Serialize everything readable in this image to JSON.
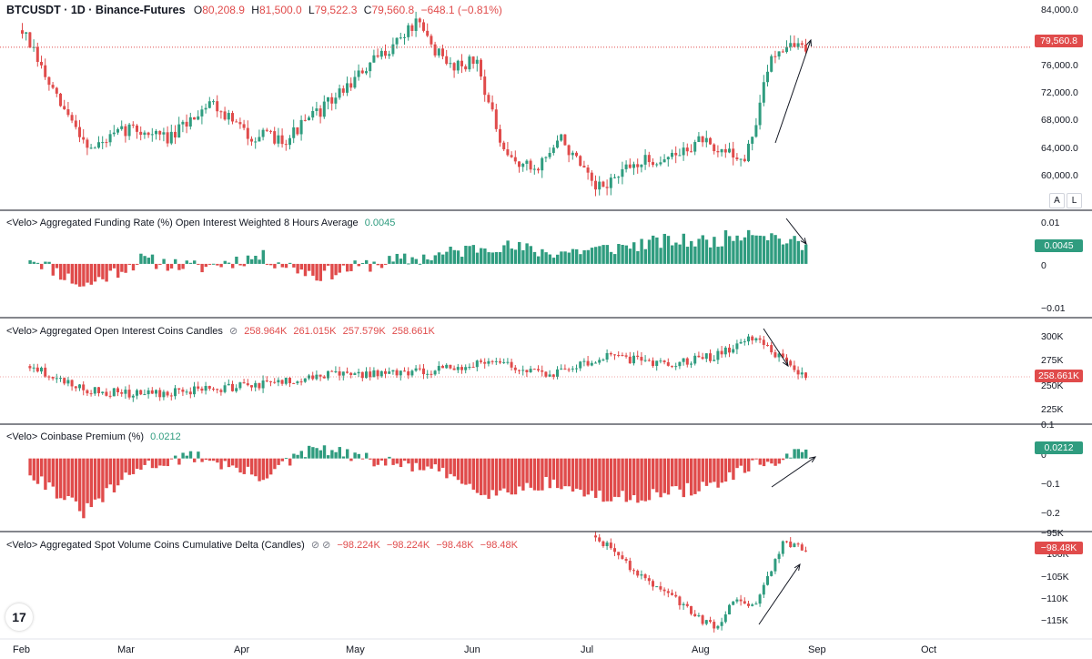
{
  "main": {
    "symbol": "BTCUSDT · 1D · Binance-Futures",
    "o_label": "O",
    "o_value": "80,208.9",
    "h_label": "H",
    "h_value": "81,500.0",
    "l_label": "L",
    "l_value": "79,522.3",
    "c_label": "C",
    "c_value": "79,560.8",
    "change": "−648.1 (−0.81%)",
    "price_tag": "79,560.8",
    "axis_ticks": [
      "84,000.0",
      "76,000.0",
      "72,000.0",
      "68,000.0",
      "64,000.0",
      "60,000.0"
    ],
    "scale_buttons": [
      "A",
      "L"
    ]
  },
  "panes": {
    "funding": {
      "title": "<Velo> Aggregated Funding Rate (%) Open Interest Weighted 8 Hours Average",
      "value": "0.0045",
      "axis_ticks": [
        "0.01",
        "0",
        "−0.01"
      ],
      "tag": "0.0045"
    },
    "oi": {
      "title": "<Velo> Aggregated Open Interest Coins Candles",
      "eye": "⊘",
      "values": [
        "258.964K",
        "261.015K",
        "257.579K",
        "258.661K"
      ],
      "axis_ticks": [
        "300K",
        "275K",
        "250K",
        "225K"
      ],
      "tag": "258.661K"
    },
    "premium": {
      "title": "<Velo> Coinbase Premium (%)",
      "value": "0.0212",
      "axis_ticks": [
        "0.1",
        "0",
        "−0.1",
        "−0.2"
      ],
      "tag": "0.0212"
    },
    "cvd": {
      "title": "<Velo> Aggregated Spot Volume Coins Cumulative Delta (Candles)",
      "eyes": "⊘ ⊘",
      "values": [
        "−98.224K",
        "−98.224K",
        "−98.48K",
        "−98.48K"
      ],
      "axis_ticks": [
        "−95K",
        "−100K",
        "−105K",
        "−110K",
        "−115K"
      ],
      "tag": "−98.48K"
    }
  },
  "time_axis": [
    "Feb",
    "Mar",
    "Apr",
    "May",
    "Jun",
    "Jul",
    "Aug",
    "Sep",
    "Oct"
  ],
  "logo_text": "17",
  "colors": {
    "up": "#2f9c7f",
    "down": "#e04b4b",
    "separator": "#3a3e47",
    "price_line": "#e04b4b"
  },
  "chart_data": [
    {
      "type": "candlestick",
      "title": "BTCUSDT · 1D · Binance-Futures",
      "x_range": [
        "Feb",
        "Aug"
      ],
      "ylim": [
        57000,
        84500
      ],
      "last_close": 79560.8,
      "series": [
        {
          "name": "BTCUSDT",
          "approx_path": [
            [
              "Feb",
              82000
            ],
            [
              "Feb",
              72000
            ],
            [
              "Feb",
              65000
            ],
            [
              "Mar",
              68000
            ],
            [
              "Mar",
              66500
            ],
            [
              "Mar",
              72000
            ],
            [
              "Apr",
              67000
            ],
            [
              "Apr",
              66500
            ],
            [
              "Apr",
              71000
            ],
            [
              "May",
              75500
            ],
            [
              "May",
              79500
            ],
            [
              "May",
              83000
            ],
            [
              "May",
              77000
            ],
            [
              "Jun",
              77500
            ],
            [
              "Jun",
              64000
            ],
            [
              "Jun",
              62000
            ],
            [
              "Jun",
              66500
            ],
            [
              "Jul",
              59000
            ],
            [
              "Jul",
              63000
            ],
            [
              "Jul",
              64000
            ],
            [
              "Aug",
              66500
            ],
            [
              "Aug",
              64000
            ],
            [
              "Aug",
              65000
            ],
            [
              "Aug",
              63000
            ],
            [
              "Aug",
              69000
            ],
            [
              "Aug",
              78500
            ],
            [
              "Aug",
              80000
            ],
            [
              "Aug",
              79560.8
            ]
          ]
        }
      ]
    },
    {
      "type": "bar",
      "title": "<Velo> Aggregated Funding Rate (%) Open Interest Weighted 8 Hours Average",
      "ylim": [
        -0.013,
        0.012
      ],
      "last_value": 0.0045,
      "series": [
        {
          "name": "Funding Rate",
          "approx_path": [
            [
              "Feb",
              0.002
            ],
            [
              "Feb",
              -0.006
            ],
            [
              "Mar",
              0.001
            ],
            [
              "Mar",
              -0.001
            ],
            [
              "Apr",
              0.002
            ],
            [
              "Apr",
              -0.003
            ],
            [
              "May",
              0.0
            ],
            [
              "May",
              0.002
            ],
            [
              "Jun",
              0.005
            ],
            [
              "Jun",
              0.003
            ],
            [
              "Jul",
              0.004
            ],
            [
              "Jul",
              0.006
            ],
            [
              "Aug",
              0.006
            ],
            [
              "Aug",
              0.009
            ],
            [
              "Aug",
              0.0045
            ]
          ]
        }
      ]
    },
    {
      "type": "candlestick",
      "title": "<Velo> Aggregated Open Interest Coins Candles",
      "ylim": [
        215000,
        310000
      ],
      "last_close": 258661,
      "series": [
        {
          "name": "Open Interest",
          "approx_path": [
            [
              "Feb",
              270000
            ],
            [
              "Feb",
              245000
            ],
            [
              "Mar",
              240000
            ],
            [
              "Mar",
              245000
            ],
            [
              "Apr",
              250000
            ],
            [
              "Apr",
              260000
            ],
            [
              "May",
              262000
            ],
            [
              "May",
              265000
            ],
            [
              "Jun",
              275000
            ],
            [
              "Jun",
              262000
            ],
            [
              "Jul",
              280000
            ],
            [
              "Jul",
              272000
            ],
            [
              "Aug",
              280000
            ],
            [
              "Aug",
              300000
            ],
            [
              "Aug",
              258661
            ]
          ]
        }
      ]
    },
    {
      "type": "bar",
      "title": "<Velo> Coinbase Premium (%)",
      "ylim": [
        -0.25,
        0.12
      ],
      "last_value": 0.0212,
      "series": [
        {
          "name": "Coinbase Premium",
          "approx_path": [
            [
              "Feb",
              -0.05
            ],
            [
              "Feb",
              -0.2
            ],
            [
              "Mar",
              -0.03
            ],
            [
              "Mar",
              0.01
            ],
            [
              "Apr",
              -0.07
            ],
            [
              "Apr",
              0.04
            ],
            [
              "May",
              -0.01
            ],
            [
              "May",
              -0.04
            ],
            [
              "Jun",
              -0.13
            ],
            [
              "Jun",
              -0.09
            ],
            [
              "Jul",
              -0.15
            ],
            [
              "Jul",
              -0.13
            ],
            [
              "Aug",
              -0.1
            ],
            [
              "Aug",
              -0.03
            ],
            [
              "Aug",
              0.0212
            ]
          ]
        }
      ]
    },
    {
      "type": "candlestick",
      "title": "<Velo> Aggregated Spot Volume Coins Cumulative Delta (Candles)",
      "ylim": [
        -119000,
        -94500
      ],
      "last_close": -98480,
      "series": [
        {
          "name": "Cumulative Delta",
          "approx_path": [
            [
              "Jul",
              -95000
            ],
            [
              "Jul",
              -104000
            ],
            [
              "Jul",
              -110000
            ],
            [
              "Aug",
              -115000
            ],
            [
              "Aug",
              -117000
            ],
            [
              "Aug",
              -110000
            ],
            [
              "Aug",
              -112000
            ],
            [
              "Aug",
              -105000
            ],
            [
              "Aug",
              -97000
            ],
            [
              "Aug",
              -98480
            ]
          ]
        }
      ]
    }
  ]
}
